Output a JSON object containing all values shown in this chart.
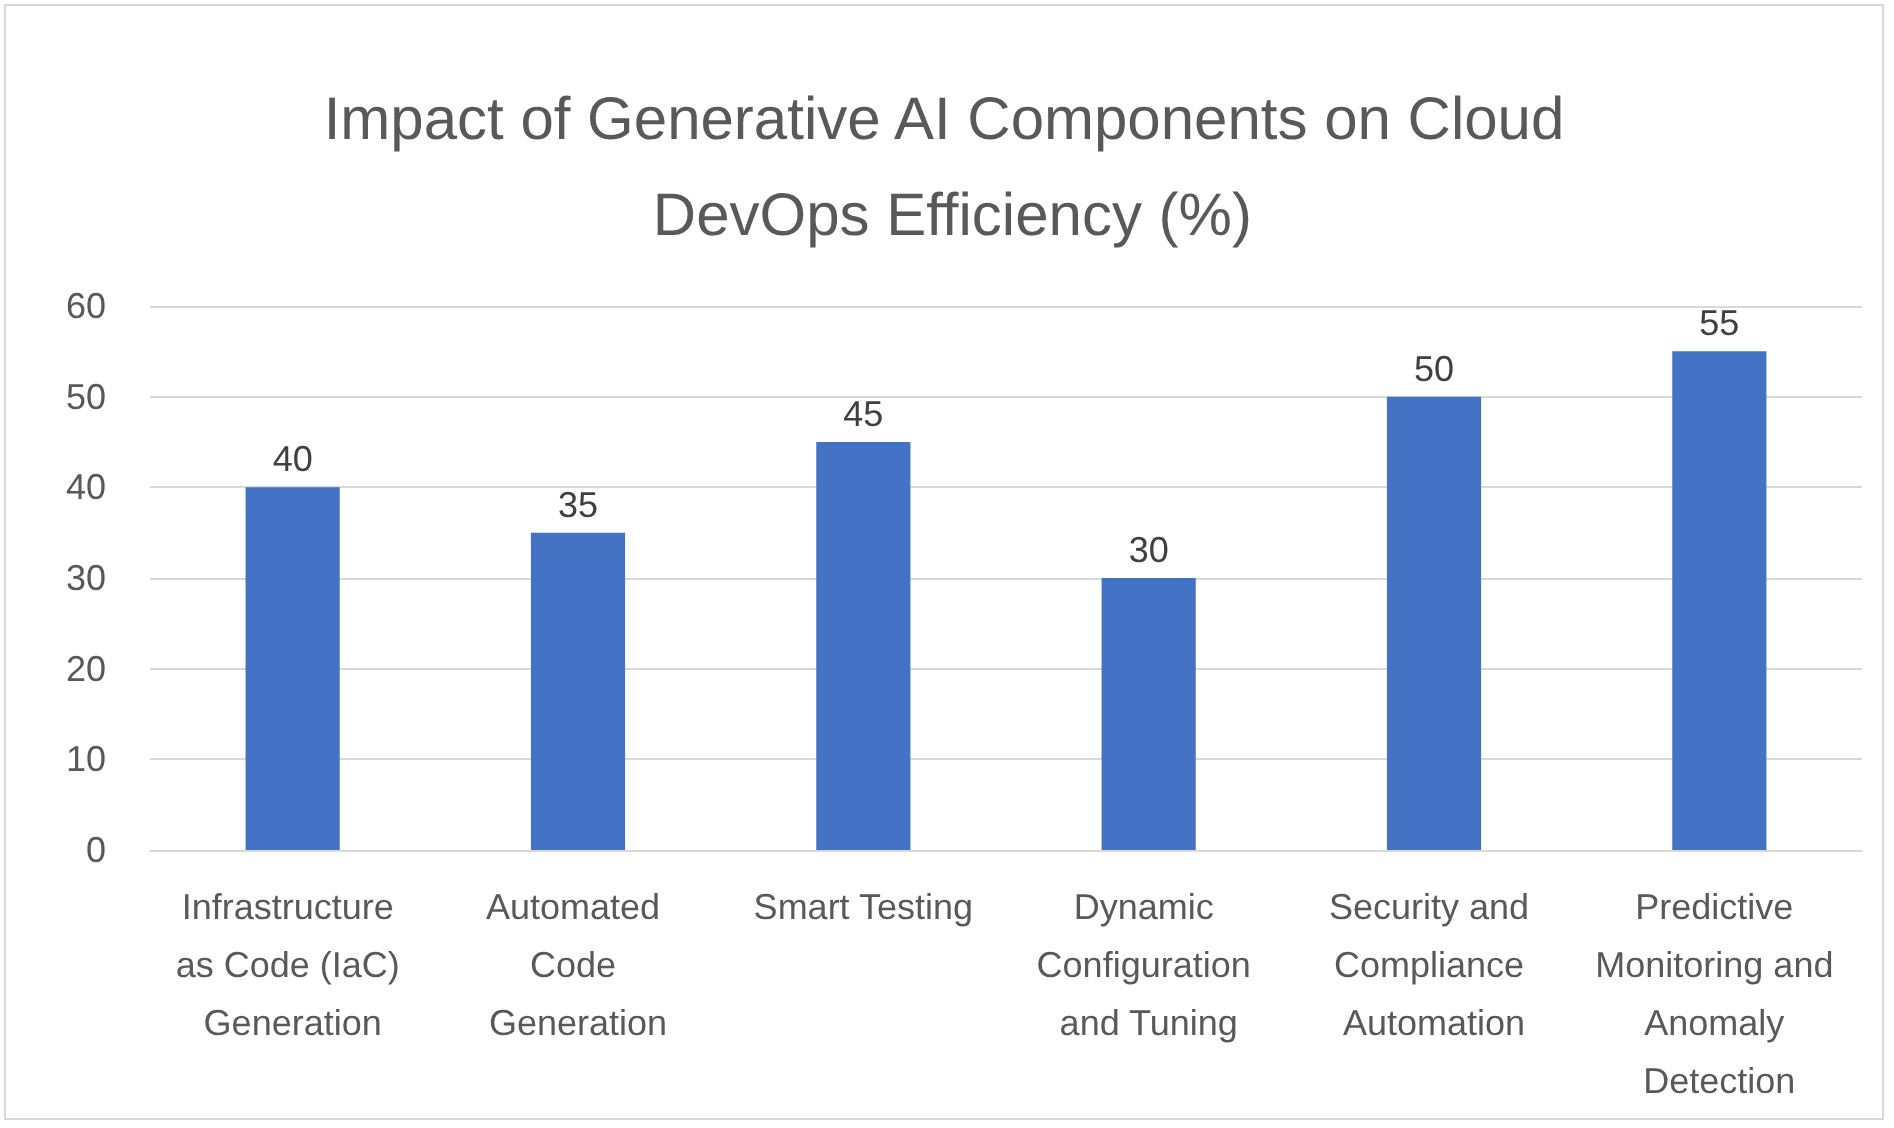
{
  "chart_data": {
    "type": "bar",
    "title": "Impact of Generative AI Components on Cloud DevOps Efficiency (%)",
    "categories": [
      "Infrastructure as Code (IaC) Generation",
      "Automated Code Generation",
      "Smart Testing",
      "Dynamic Configuration and Tuning",
      "Security and Compliance Automation",
      "Predictive Monitoring and Anomaly Detection"
    ],
    "values": [
      40,
      35,
      45,
      30,
      50,
      55
    ],
    "color": "#4472c4",
    "ylim": [
      0,
      60
    ],
    "yticks": [
      0,
      10,
      20,
      30,
      40,
      50,
      60
    ],
    "grid": "y",
    "data_labels": true
  }
}
